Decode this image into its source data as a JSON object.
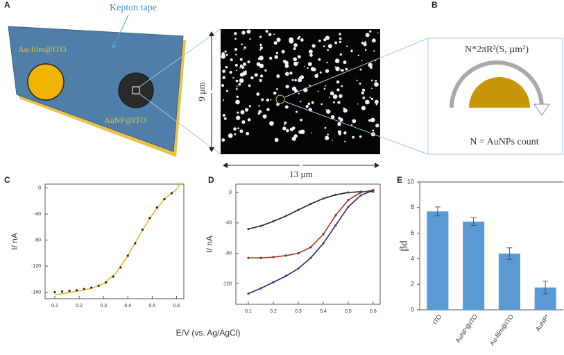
{
  "panels": {
    "labels": [
      "A",
      "B",
      "C",
      "D",
      "E"
    ],
    "tape_label": "Kepton tape",
    "film_label": "Au-film@ITO",
    "np_label": "AuNP@ITO",
    "height_label": "9 µm",
    "width_label": "13 µm",
    "formula": "N*2πR²(S, µm²)",
    "count_label": "N = AuNPs count",
    "shared_xlabel": "E/V (vs. Ag/AgCl)"
  },
  "chart_data": [
    {
      "type": "line",
      "ylabel": "I/ nA",
      "xlim": [
        0.06,
        0.63
      ],
      "ylim": [
        -170,
        6
      ],
      "xticks": [
        0.1,
        0.2,
        0.3,
        0.4,
        0.5,
        0.6
      ],
      "yticks": [
        0,
        -40,
        -80,
        -120,
        -160
      ],
      "series": [
        {
          "style": "line",
          "color": "#f0b429",
          "x": [
            0.1,
            0.15,
            0.2,
            0.25,
            0.3,
            0.35,
            0.4,
            0.45,
            0.5,
            0.55,
            0.6,
            0.62
          ],
          "values": [
            -164,
            -161,
            -158,
            -154,
            -147,
            -131,
            -104,
            -71,
            -41,
            -17,
            -2,
            8
          ]
        },
        {
          "style": "dots",
          "color": "#222222",
          "x": [
            0.1,
            0.13,
            0.16,
            0.19,
            0.22,
            0.25,
            0.28,
            0.31,
            0.34,
            0.37,
            0.4,
            0.43,
            0.46,
            0.49,
            0.52,
            0.55,
            0.58
          ],
          "values": [
            -160,
            -159,
            -158,
            -157,
            -155,
            -153,
            -150,
            -145,
            -136,
            -122,
            -104,
            -85,
            -64,
            -46,
            -30,
            -17,
            -8
          ]
        }
      ]
    },
    {
      "type": "line",
      "ylabel": "I/ nA",
      "xlim": [
        0.05,
        0.628
      ],
      "ylim": [
        -147,
        11
      ],
      "xticks": [
        0.1,
        0.2,
        0.3,
        0.4,
        0.5,
        0.6
      ],
      "yticks": [
        0,
        -40,
        -80,
        -120
      ],
      "series": [
        {
          "style": "both",
          "color": "#222222",
          "x": [
            0.1,
            0.15,
            0.2,
            0.25,
            0.3,
            0.35,
            0.4,
            0.45,
            0.5,
            0.55,
            0.6
          ],
          "values": [
            -48,
            -44,
            -38,
            -31,
            -23,
            -15,
            -8,
            -3,
            0,
            1,
            1
          ]
        },
        {
          "style": "both",
          "color": "#b03020",
          "x": [
            0.1,
            0.15,
            0.2,
            0.25,
            0.3,
            0.35,
            0.4,
            0.45,
            0.5,
            0.55,
            0.6
          ],
          "values": [
            -86,
            -86,
            -85,
            -83,
            -80,
            -72,
            -55,
            -30,
            -10,
            0,
            3
          ]
        },
        {
          "style": "both",
          "color": "#1f2a6b",
          "x": [
            0.1,
            0.15,
            0.2,
            0.25,
            0.3,
            0.35,
            0.4,
            0.45,
            0.5,
            0.55,
            0.6
          ],
          "values": [
            -133,
            -126,
            -118,
            -110,
            -100,
            -86,
            -67,
            -43,
            -19,
            -4,
            3
          ]
        }
      ]
    },
    {
      "type": "bar",
      "ylabel": "βd",
      "categories": [
        "ITO",
        "AuNP@ITO",
        "Au-film@ITO",
        "AuNP*"
      ],
      "values": [
        7.7,
        6.9,
        4.4,
        1.75
      ],
      "errors": [
        0.35,
        0.3,
        0.45,
        0.5
      ],
      "color": "#5b9bd5",
      "ylim": [
        0,
        10
      ],
      "yticks": [
        0,
        2,
        4,
        6,
        8,
        10
      ]
    }
  ]
}
